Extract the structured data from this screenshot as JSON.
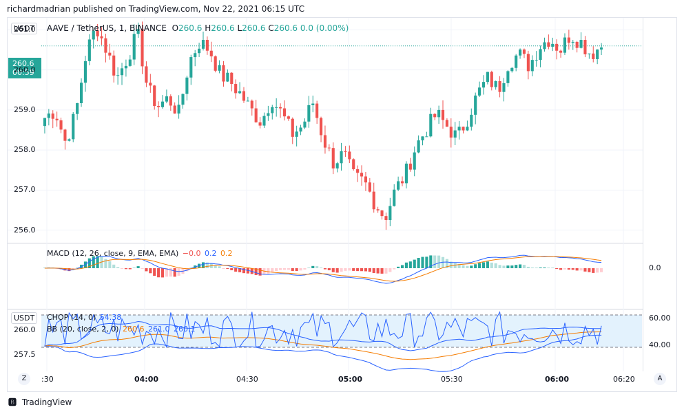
{
  "publisher_line": "richardmadrian published on TradingView.com, Nov 22, 2021 06:15 UTC",
  "quote_currency_badge": "USDT",
  "symbol_title": "AAVE / TetherUS, 1, BINANCE",
  "ohlc": {
    "o_label": "O",
    "o_value": "260.6",
    "h_label": "H",
    "h_value": "260.6",
    "l_label": "L",
    "l_value": "260.6",
    "c_label": "C",
    "c_value": "260.6",
    "change": "0.0 (0.00%)"
  },
  "price_tag": {
    "price": "260.6",
    "countdown": "00:59"
  },
  "colors": {
    "up": "#26a69a",
    "down": "#ef5350",
    "macd": "#2962ff",
    "signal": "#f57c00",
    "bb": "#2962ff",
    "bb_basis": "#f57c00",
    "chop_fill": "#e3f2fd"
  },
  "macd_legend": {
    "label": "MACD (12, 26, close, 9, EMA, EMA)",
    "hist": "−0.0",
    "macd": "0.2",
    "signal": "0.2"
  },
  "macd_axis_label": "0.0",
  "lower_badge": "USDT",
  "chop_legend": {
    "label": "CHOP (14, 0)",
    "value": "54.38"
  },
  "bb_legend": {
    "label": "BB (20, close, 2, 0)",
    "basis": "260.6",
    "upper": "261.0",
    "lower": "260.1"
  },
  "lower_y_ticks": [
    "260.0",
    "257.5"
  ],
  "chop_axis_ticks": [
    "60.00",
    "40.00"
  ],
  "x_ticks": [
    ":30",
    "04:00",
    "04:30",
    "05:00",
    "05:30",
    "06:00",
    "06:20"
  ],
  "bold_x_ticks": [
    "04:00",
    "05:00",
    "06:00"
  ],
  "zoom_button": "Z",
  "auto_button": "A",
  "footer_brand": "TradingView",
  "chart_data": {
    "type": "candlestick",
    "title": "AAVE / TetherUS, 1, BINANCE",
    "interval": "1 minute",
    "price_ticks": [
      261.0,
      260.0,
      259.0,
      258.0,
      257.0,
      256.0
    ],
    "ylim": [
      255.7,
      261.3
    ],
    "last_price": 260.6,
    "time_labels": [
      ":30",
      "04:00",
      "04:30",
      "05:00",
      "05:30",
      "06:00",
      "06:20"
    ],
    "close_path": [
      258.8,
      259.0,
      258.2,
      258.9,
      260.4,
      261.1,
      260.5,
      259.8,
      260.3,
      260.9,
      259.5,
      259.1,
      259.3,
      258.9,
      260.2,
      260.7,
      260.5,
      259.9,
      259.7,
      259.4,
      259.0,
      258.7,
      259.3,
      258.9,
      258.4,
      258.6,
      259.2,
      258.3,
      257.7,
      257.9,
      257.3,
      257.2,
      256.7,
      256.3,
      257.0,
      257.4,
      258.1,
      258.5,
      258.9,
      258.6,
      258.3,
      258.8,
      259.4,
      259.8,
      259.5,
      260.2,
      260.4,
      260.1,
      260.6,
      260.8,
      260.5,
      260.9,
      260.7,
      260.4,
      260.6
    ],
    "indicators": {
      "macd": {
        "params": "12, 26, close, 9, EMA, EMA",
        "histogram": -0.0,
        "macd": 0.2,
        "signal": 0.2,
        "zero_line": 0.0
      },
      "chop": {
        "params": "14, 0",
        "value": 54.38,
        "upper_band": 60.0,
        "lower_band": 40.0
      },
      "bb": {
        "params": "20, close, 2, 0",
        "basis": 260.6,
        "upper": 261.0,
        "lower": 260.1
      }
    }
  }
}
